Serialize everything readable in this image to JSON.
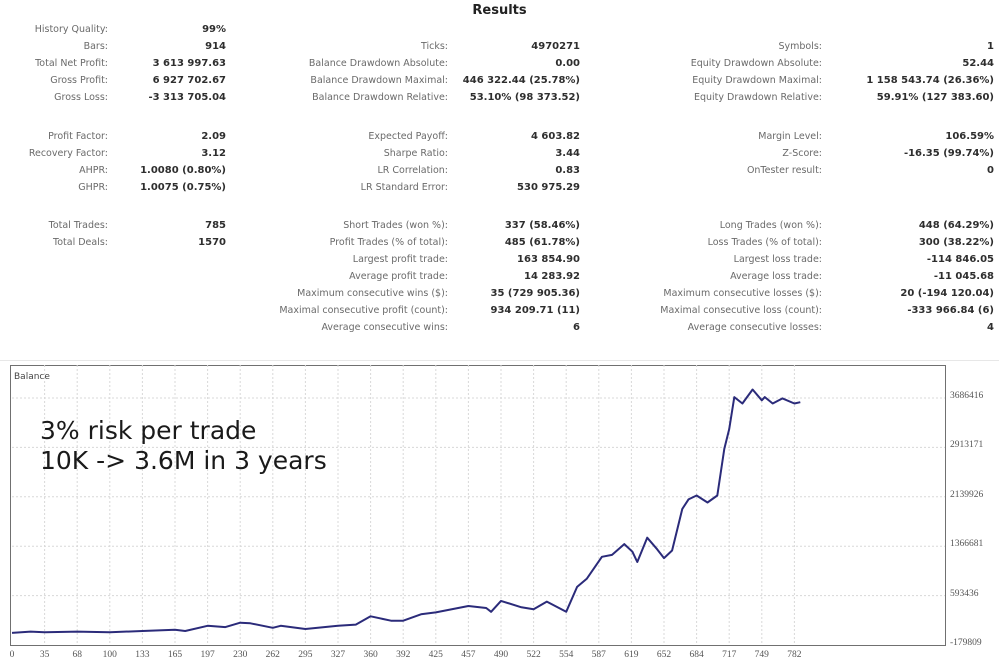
{
  "header": {
    "title": "Results"
  },
  "stats": {
    "col1": [
      {
        "label": "History Quality:",
        "value": "99%"
      },
      {
        "label": "Bars:",
        "value": "914"
      },
      {
        "label": "Total Net Profit:",
        "value": "3 613 997.63"
      },
      {
        "label": "Gross Profit:",
        "value": "6 927 702.67"
      },
      {
        "label": "Gross Loss:",
        "value": "-3 313 705.04"
      },
      {
        "label": "Profit Factor:",
        "value": "2.09"
      },
      {
        "label": "Recovery Factor:",
        "value": "3.12"
      },
      {
        "label": "AHPR:",
        "value": "1.0080 (0.80%)"
      },
      {
        "label": "GHPR:",
        "value": "1.0075 (0.75%)"
      },
      {
        "label": "Total Trades:",
        "value": "785"
      },
      {
        "label": "Total Deals:",
        "value": "1570"
      }
    ],
    "col2": [
      {
        "label": "Ticks:",
        "value": "4970271"
      },
      {
        "label": "Balance Drawdown Absolute:",
        "value": "0.00"
      },
      {
        "label": "Balance Drawdown Maximal:",
        "value": "446 322.44 (25.78%)"
      },
      {
        "label": "Balance Drawdown Relative:",
        "value": "53.10% (98 373.52)"
      },
      {
        "label": "Expected Payoff:",
        "value": "4 603.82"
      },
      {
        "label": "Sharpe Ratio:",
        "value": "3.44"
      },
      {
        "label": "LR Correlation:",
        "value": "0.83"
      },
      {
        "label": "LR Standard Error:",
        "value": "530 975.29"
      },
      {
        "label": "Short Trades (won %):",
        "value": "337 (58.46%)"
      },
      {
        "label": "Profit Trades (% of total):",
        "value": "485 (61.78%)"
      },
      {
        "label": "Largest profit trade:",
        "value": "163 854.90"
      },
      {
        "label": "Average profit trade:",
        "value": "14 283.92"
      },
      {
        "label": "Maximum consecutive wins ($):",
        "value": "35 (729 905.36)"
      },
      {
        "label": "Maximal consecutive profit (count):",
        "value": "934 209.71 (11)"
      },
      {
        "label": "Average consecutive wins:",
        "value": "6"
      }
    ],
    "col3": [
      {
        "label": "Symbols:",
        "value": "1"
      },
      {
        "label": "Equity Drawdown Absolute:",
        "value": "52.44"
      },
      {
        "label": "Equity Drawdown Maximal:",
        "value": "1 158 543.74 (26.36%)"
      },
      {
        "label": "Equity Drawdown Relative:",
        "value": "59.91% (127 383.60)"
      },
      {
        "label": "Margin Level:",
        "value": "106.59%"
      },
      {
        "label": "Z-Score:",
        "value": "-16.35 (99.74%)"
      },
      {
        "label": "OnTester result:",
        "value": "0"
      },
      {
        "label": "Long Trades (won %):",
        "value": "448 (64.29%)"
      },
      {
        "label": "Loss Trades (% of total):",
        "value": "300 (38.22%)"
      },
      {
        "label": "Largest loss trade:",
        "value": "-114 846.05"
      },
      {
        "label": "Average loss trade:",
        "value": "-11 045.68"
      },
      {
        "label": "Maximum consecutive losses ($):",
        "value": "20 (-194 120.04)"
      },
      {
        "label": "Maximal consecutive loss (count):",
        "value": "-333 966.84 (6)"
      },
      {
        "label": "Average consecutive losses:",
        "value": "4"
      }
    ]
  },
  "chart_data": {
    "type": "line",
    "title": "Balance",
    "annotation": [
      "3% risk per trade",
      "10K -> 3.6M in 3 years"
    ],
    "xlabel": "",
    "ylabel": "",
    "x_ticks": [
      "0",
      "35",
      "68",
      "100",
      "133",
      "165",
      "197",
      "230",
      "262",
      "295",
      "327",
      "360",
      "392",
      "425",
      "457",
      "490",
      "522",
      "554",
      "587",
      "619",
      "652",
      "684",
      "717",
      "749",
      "782"
    ],
    "y_ticks": [
      "3686416",
      "2913171",
      "2139926",
      "1366681",
      "593436",
      "-179809"
    ],
    "ylim": [
      -179809,
      3686416
    ],
    "xlim": [
      0,
      800
    ],
    "grid": true,
    "legend": null,
    "line_color": "#2b2b7a",
    "series": [
      {
        "name": "Balance",
        "x": [
          0,
          20,
          35,
          68,
          100,
          133,
          165,
          175,
          197,
          215,
          230,
          240,
          262,
          270,
          295,
          327,
          345,
          360,
          380,
          392,
          410,
          425,
          457,
          475,
          480,
          490,
          510,
          522,
          535,
          554,
          565,
          575,
          590,
          600,
          612,
          620,
          625,
          635,
          645,
          652,
          660,
          670,
          676,
          684,
          695,
          705,
          712,
          717,
          722,
          730,
          740,
          749,
          752,
          760,
          770,
          782,
          788
        ],
        "y": [
          10000,
          30000,
          20000,
          30000,
          20000,
          40000,
          60000,
          40000,
          120000,
          100000,
          170000,
          160000,
          90000,
          120000,
          70000,
          120000,
          140000,
          270000,
          200000,
          200000,
          300000,
          330000,
          430000,
          400000,
          340000,
          510000,
          410000,
          380000,
          500000,
          340000,
          730000,
          860000,
          1200000,
          1230000,
          1400000,
          1280000,
          1120000,
          1500000,
          1320000,
          1180000,
          1300000,
          1950000,
          2100000,
          2160000,
          2050000,
          2160000,
          2890000,
          3200000,
          3700000,
          3600000,
          3820000,
          3650000,
          3700000,
          3600000,
          3680000,
          3600000,
          3620000
        ]
      }
    ]
  }
}
